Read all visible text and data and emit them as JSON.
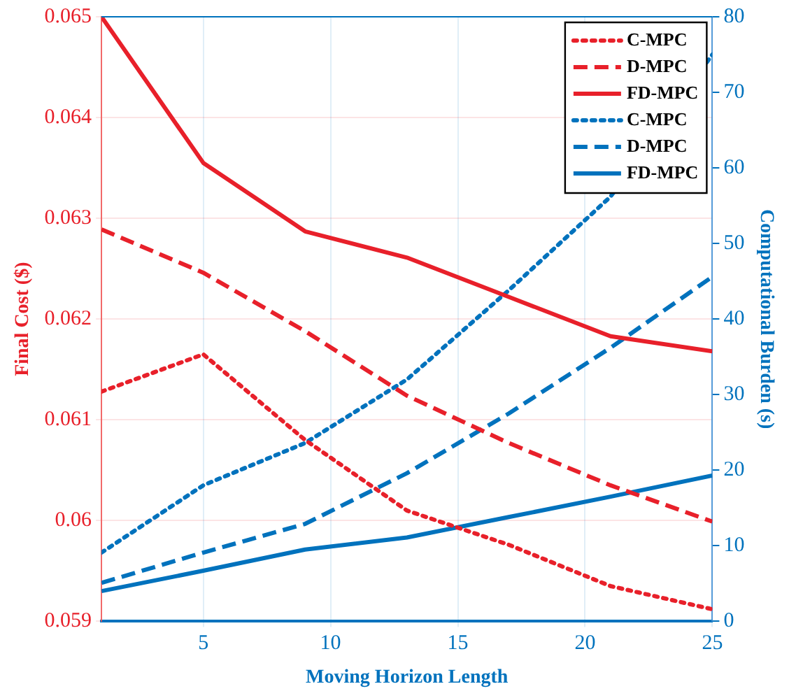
{
  "chart_data": {
    "type": "line",
    "xlabel": "Moving Horizon Length",
    "ylabel": "Final Cost ($)",
    "y2label": "Computational Burden (s)",
    "x": [
      1,
      5,
      9,
      13,
      17,
      21,
      25
    ],
    "series": [
      {
        "name": "C-MPC",
        "color": "#e8202a",
        "line_style": "dotted",
        "values": [
          0.06128,
          0.06165,
          0.0608,
          0.0601,
          0.05976,
          0.05935,
          0.05912
        ]
      },
      {
        "name": "D-MPC",
        "color": "#e8202a",
        "line_style": "dashed",
        "values": [
          0.06289,
          0.06246,
          0.06188,
          0.06124,
          0.06077,
          0.06035,
          0.05999
        ]
      },
      {
        "name": "FD-MPC",
        "color": "#e8202a",
        "line_style": "solid",
        "values": [
          0.065,
          0.06355,
          0.06287,
          0.06261,
          0.06222,
          0.06183,
          0.06168
        ]
      },
      {
        "name": "C-MPC",
        "color": "#0072bd",
        "line_style": "dotted",
        "axis": "y2",
        "values": [
          9.1,
          18,
          23.6,
          32,
          43.8,
          56.2,
          75
        ]
      },
      {
        "name": "D-MPC",
        "color": "#0072bd",
        "line_style": "dashed",
        "axis": "y2",
        "values": [
          5.1,
          9.1,
          12.9,
          19.6,
          27.5,
          36.2,
          45.6
        ]
      },
      {
        "name": "FD-MPC",
        "color": "#0072bd",
        "line_style": "solid",
        "axis": "y2",
        "values": [
          4,
          6.7,
          9.5,
          11.1,
          13.8,
          16.5,
          19.3
        ]
      }
    ],
    "xlim": [
      1,
      25
    ],
    "xticks": [
      5,
      10,
      15,
      20,
      25
    ],
    "ylim": [
      0.059,
      0.065
    ],
    "yticks": [
      0.059,
      0.06,
      0.061,
      0.062,
      0.063,
      0.064,
      0.065
    ],
    "y2lim": [
      0,
      80
    ],
    "y2ticks": [
      0,
      10,
      20,
      30,
      40,
      50,
      60,
      70,
      80
    ],
    "grid": true,
    "legend": "top right",
    "marker": "none"
  }
}
